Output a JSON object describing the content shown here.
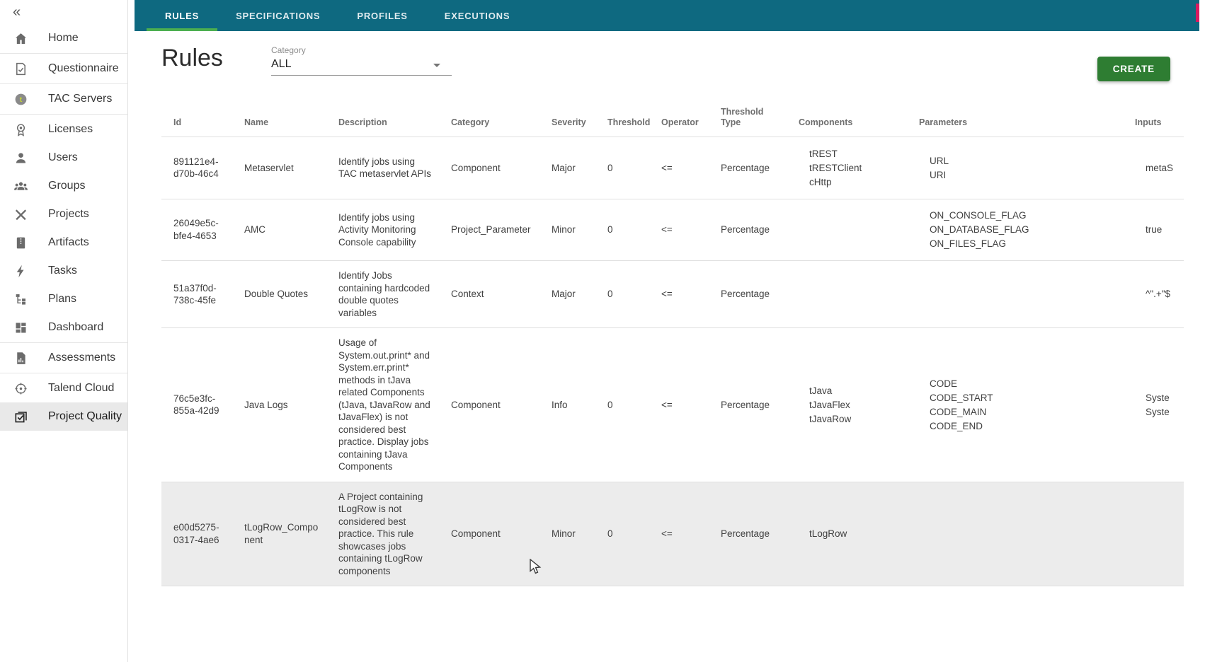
{
  "colors": {
    "topbar_teal": "#0e6980",
    "active_tab_green": "#4caf50",
    "create_button_green": "#2e7d32",
    "row_highlight": "#ececec",
    "red_sliver": "#d81b60"
  },
  "sidebar": {
    "collapse_icon": "«",
    "items": [
      {
        "label": "Home",
        "icon": "home-icon",
        "divider_after": true
      },
      {
        "label": "Questionnaire",
        "icon": "questionnaire-icon",
        "divider_after": true
      },
      {
        "label": "TAC Servers",
        "icon": "tac-servers-icon",
        "divider_after": true
      },
      {
        "label": "Licenses",
        "icon": "licenses-icon",
        "divider_after": false
      },
      {
        "label": "Users",
        "icon": "users-icon",
        "divider_after": false
      },
      {
        "label": "Groups",
        "icon": "groups-icon",
        "divider_after": false
      },
      {
        "label": "Projects",
        "icon": "projects-icon",
        "divider_after": false
      },
      {
        "label": "Artifacts",
        "icon": "artifacts-icon",
        "divider_after": false
      },
      {
        "label": "Tasks",
        "icon": "tasks-icon",
        "divider_after": false
      },
      {
        "label": "Plans",
        "icon": "plans-icon",
        "divider_after": false
      },
      {
        "label": "Dashboard",
        "icon": "dashboard-icon",
        "divider_after": true
      },
      {
        "label": "Assessments",
        "icon": "assessments-icon",
        "divider_after": true
      },
      {
        "label": "Talend Cloud",
        "icon": "talend-cloud-icon",
        "divider_after": false
      },
      {
        "label": "Project Quality",
        "icon": "project-quality-icon",
        "divider_after": false,
        "active": true
      }
    ]
  },
  "topbar": {
    "tabs": [
      {
        "label": "RULES",
        "active": true
      },
      {
        "label": "SPECIFICATIONS",
        "active": false
      },
      {
        "label": "PROFILES",
        "active": false
      },
      {
        "label": "EXECUTIONS",
        "active": false
      }
    ]
  },
  "page": {
    "title": "Rules"
  },
  "filter": {
    "label": "Category",
    "value": "ALL"
  },
  "actions": {
    "create_label": "CREATE"
  },
  "table": {
    "columns": [
      "Id",
      "Name",
      "Description",
      "Category",
      "Severity",
      "Threshold",
      "Operator",
      "Threshold Type",
      "Components",
      "Parameters",
      "Inputs"
    ],
    "rows": [
      {
        "id": "891121e4-d70b-46c4",
        "name": "Metaservlet",
        "description": "Identify jobs using TAC metaservlet APIs",
        "category": "Component",
        "severity": "Major",
        "threshold": "0",
        "operator": "<=",
        "threshold_type": "Percentage",
        "components": [
          "tREST",
          "tRESTClient",
          "cHttp"
        ],
        "parameters": [
          "URL",
          "URI"
        ],
        "inputs": [
          "metaS"
        ],
        "highlighted": false
      },
      {
        "id": "26049e5c-bfe4-4653",
        "name": "AMC",
        "description": "Identify jobs using Activity Monitoring Console capability",
        "category": "Project_Parameter",
        "severity": "Minor",
        "threshold": "0",
        "operator": "<=",
        "threshold_type": "Percentage",
        "components": [],
        "parameters": [
          "ON_CONSOLE_FLAG",
          "ON_DATABASE_FLAG",
          "ON_FILES_FLAG"
        ],
        "inputs": [
          "true"
        ],
        "highlighted": false
      },
      {
        "id": "51a37f0d-738c-45fe",
        "name": "Double Quotes",
        "description": "Identify Jobs containing hardcoded double quotes variables",
        "category": "Context",
        "severity": "Major",
        "threshold": "0",
        "operator": "<=",
        "threshold_type": "Percentage",
        "components": [],
        "parameters": [],
        "inputs": [
          "^\".+\"$"
        ],
        "highlighted": false
      },
      {
        "id": "76c5e3fc-855a-42d9",
        "name": "Java Logs",
        "description": "Usage of System.out.print* and System.err.print* methods in tJava related Components (tJava, tJavaRow and tJavaFlex) is not considered best practice. Display jobs containing tJava Components",
        "category": "Component",
        "severity": "Info",
        "threshold": "0",
        "operator": "<=",
        "threshold_type": "Percentage",
        "components": [
          "tJava",
          "tJavaFlex",
          "tJavaRow"
        ],
        "parameters": [
          "CODE",
          "CODE_START",
          "CODE_MAIN",
          "CODE_END"
        ],
        "inputs": [
          "Syste",
          "Syste"
        ],
        "highlighted": false
      },
      {
        "id": "e00d5275-0317-4ae6",
        "name": "tLogRow_Component",
        "description": "A Project containing tLogRow is not considered best practice. This rule showcases jobs containing tLogRow components",
        "category": "Component",
        "severity": "Minor",
        "threshold": "0",
        "operator": "<=",
        "threshold_type": "Percentage",
        "components": [
          "tLogRow"
        ],
        "parameters": [],
        "inputs": [],
        "highlighted": true
      }
    ]
  }
}
